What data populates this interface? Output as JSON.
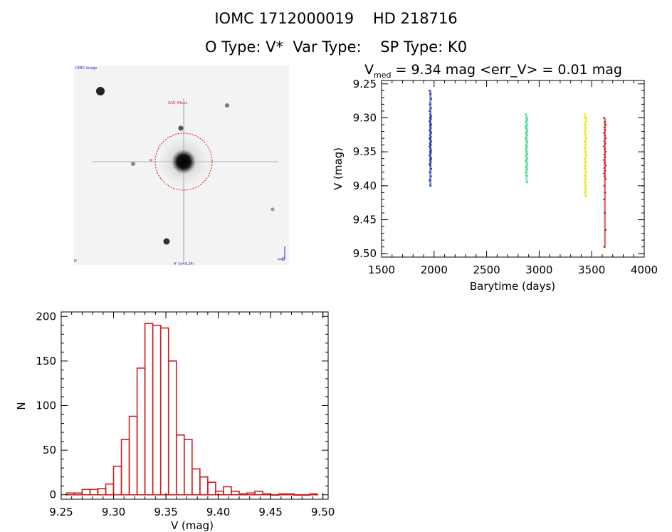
{
  "page": {
    "title_line1": "IOMC 1712000019    HD 218716",
    "title_line2": "O Type: V*  Var Type:    SP Type: K0"
  },
  "sky_image": {
    "label_top_left": "IOMC image",
    "label_target": "SAO 34xxx",
    "label_bottom_center": "4' (V=9.34)",
    "label_bottom_left": "N",
    "label_bottom_right": "E"
  },
  "chart_data": [
    {
      "type": "scatter",
      "title_prefix": "V",
      "title_subscript": "med",
      "title_rest": " = 9.34 mag <err_V> = 0.01 mag",
      "xlabel": "Barytime (days)",
      "ylabel": "V (mag)",
      "xlim": [
        1500,
        4000
      ],
      "ylim": [
        9.505,
        9.245
      ],
      "y_inverted": true,
      "xticks": [
        "1500",
        "2000",
        "2500",
        "3000",
        "3500",
        "4000"
      ],
      "yticks": [
        "9.25",
        "9.30",
        "9.35",
        "9.40",
        "9.45",
        "9.50"
      ],
      "series": [
        {
          "color": "#1a2fb8",
          "x": 1965,
          "y_range": [
            9.26,
            9.4
          ],
          "y": [
            9.26,
            9.265,
            9.272,
            9.28,
            9.286,
            9.29,
            9.295,
            9.298,
            9.3,
            9.302,
            9.305,
            9.308,
            9.31,
            9.312,
            9.315,
            9.318,
            9.32,
            9.322,
            9.325,
            9.328,
            9.33,
            9.332,
            9.335,
            9.338,
            9.34,
            9.342,
            9.345,
            9.348,
            9.35,
            9.352,
            9.355,
            9.358,
            9.36,
            9.362,
            9.365,
            9.368,
            9.37,
            9.375,
            9.38,
            9.386,
            9.392,
            9.4
          ]
        },
        {
          "color": "#2ad98a",
          "x": 2880,
          "y_range": [
            9.295,
            9.395
          ],
          "y": [
            9.295,
            9.3,
            9.303,
            9.306,
            9.31,
            9.313,
            9.316,
            9.32,
            9.323,
            9.326,
            9.33,
            9.333,
            9.336,
            9.34,
            9.343,
            9.346,
            9.35,
            9.353,
            9.356,
            9.36,
            9.363,
            9.366,
            9.37,
            9.373,
            9.376,
            9.38,
            9.385,
            9.395
          ]
        },
        {
          "color": "#e6e600",
          "x": 3440,
          "y_range": [
            9.295,
            9.415
          ],
          "y": [
            9.295,
            9.3,
            9.305,
            9.31,
            9.315,
            9.32,
            9.325,
            9.33,
            9.335,
            9.34,
            9.345,
            9.35,
            9.355,
            9.36,
            9.365,
            9.37,
            9.375,
            9.38,
            9.385,
            9.39,
            9.395,
            9.4,
            9.405,
            9.41,
            9.415
          ]
        },
        {
          "color": "#c41a1a",
          "x": 3625,
          "y_range": [
            9.3,
            9.49
          ],
          "y": [
            9.3,
            9.306,
            9.31,
            9.314,
            9.318,
            9.322,
            9.326,
            9.33,
            9.334,
            9.338,
            9.342,
            9.346,
            9.35,
            9.354,
            9.358,
            9.362,
            9.366,
            9.37,
            9.374,
            9.378,
            9.382,
            9.386,
            9.39,
            9.4,
            9.41,
            9.42,
            9.44,
            9.465,
            9.49
          ]
        }
      ]
    },
    {
      "type": "bar",
      "subtype": "histogram",
      "xlabel": "V (mag)",
      "ylabel": "N",
      "xlim": [
        9.25,
        9.505
      ],
      "ylim": [
        -5,
        205
      ],
      "xticks": [
        "9.25",
        "9.30",
        "9.35",
        "9.40",
        "9.45",
        "9.50"
      ],
      "yticks": [
        "0",
        "50",
        "100",
        "150",
        "200"
      ],
      "bar_color": "#cc1f1f",
      "bin_width": 0.0075,
      "bin_starts": [
        9.255,
        9.2625,
        9.27,
        9.2775,
        9.285,
        9.2925,
        9.3,
        9.3075,
        9.315,
        9.3225,
        9.33,
        9.3375,
        9.345,
        9.3525,
        9.36,
        9.3675,
        9.375,
        9.3825,
        9.39,
        9.3975,
        9.405,
        9.4125,
        9.42,
        9.4275,
        9.435,
        9.4425,
        9.45,
        9.4575,
        9.465,
        9.4725,
        9.48,
        9.4875
      ],
      "values": [
        2,
        2,
        6,
        6,
        7,
        12,
        32,
        62,
        88,
        142,
        192,
        190,
        187,
        150,
        67,
        62,
        29,
        20,
        14,
        4,
        9,
        4,
        1,
        2,
        4,
        1,
        0,
        1,
        1,
        0,
        0,
        1
      ]
    }
  ]
}
